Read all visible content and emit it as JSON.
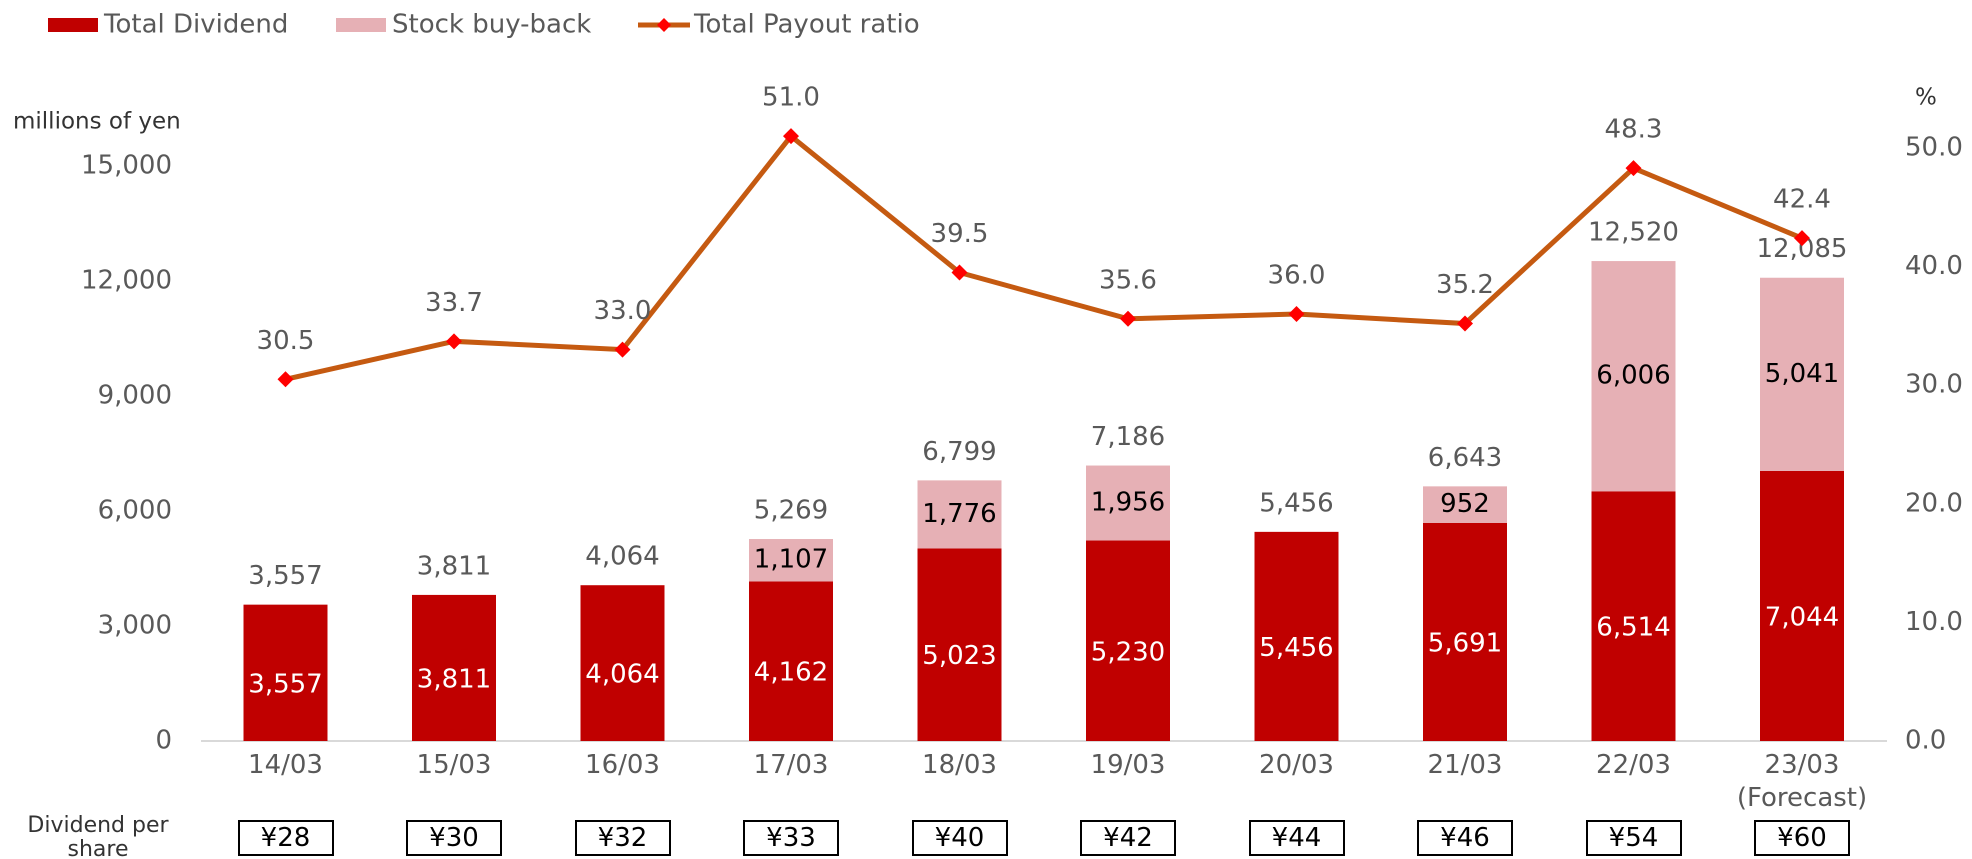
{
  "chart_data": {
    "type": "bar",
    "categories": [
      "14/03",
      "15/03",
      "16/03",
      "17/03",
      "18/03",
      "19/03",
      "20/03",
      "21/03",
      "22/03",
      "23/03\n(Forecast)"
    ],
    "series": [
      {
        "name": "Total Dividend",
        "color": "#c00000",
        "values": [
          3557,
          3811,
          4064,
          4162,
          5023,
          5230,
          5456,
          5691,
          6514,
          7044
        ],
        "value_labels": [
          "3,557",
          "3,811",
          "4,064",
          "4,162",
          "5,023",
          "5,230",
          "5,456",
          "5,691",
          "6,514",
          "7,044"
        ]
      },
      {
        "name": "Stock buy-back",
        "color": "#e6b0b5",
        "values": [
          null,
          null,
          null,
          1107,
          1776,
          1956,
          null,
          952,
          6006,
          5041
        ],
        "value_labels": [
          null,
          null,
          null,
          "1,107",
          "1,776",
          "1,956",
          null,
          "952",
          "6,006",
          "5,041"
        ]
      },
      {
        "name": "Total Payout ratio",
        "type": "line",
        "axis": "y2",
        "color": "#c55a11",
        "marker_color": "#ff0000",
        "values": [
          30.5,
          33.7,
          33.0,
          51.0,
          39.5,
          35.6,
          36.0,
          35.2,
          48.3,
          42.4
        ],
        "value_labels": [
          "30.5",
          "33.7",
          "33.0",
          "51.0",
          "39.5",
          "35.6",
          "36.0",
          "35.2",
          "48.3",
          "42.4"
        ]
      }
    ],
    "total_labels": [
      "3,557",
      "3,811",
      "4,064",
      "5,269",
      "6,799",
      "7,186",
      "5,456",
      "6,643",
      "12,520",
      "12,085"
    ],
    "ylabel": "millions of yen",
    "y2label": "%",
    "ylim": [
      0,
      15000
    ],
    "yticks": [
      0,
      {
        "value": 3000,
        "label": "3,000"
      },
      {
        "value": 6000,
        "label": "6,000"
      },
      {
        "value": 9000,
        "label": "9,000"
      },
      {
        "value": 12000,
        "label": "12,000"
      },
      {
        "value": 15000,
        "label": "15,000"
      }
    ],
    "y2lim": [
      0,
      50
    ],
    "y2ticks": [
      {
        "value": 0,
        "label": "0.0"
      },
      {
        "value": 10,
        "label": "10.0"
      },
      {
        "value": 20,
        "label": "20.0"
      },
      {
        "value": 30,
        "label": "30.0"
      },
      {
        "value": 40,
        "label": "40.0"
      },
      {
        "value": 50,
        "label": "50.0"
      }
    ],
    "dividend_per_share_label": "Dividend per\nshare",
    "dividend_per_share": [
      "¥28",
      "¥30",
      "¥32",
      "¥33",
      "¥40",
      "¥42",
      "¥44",
      "¥46",
      "¥54",
      "¥60"
    ],
    "legend": "top-left"
  }
}
